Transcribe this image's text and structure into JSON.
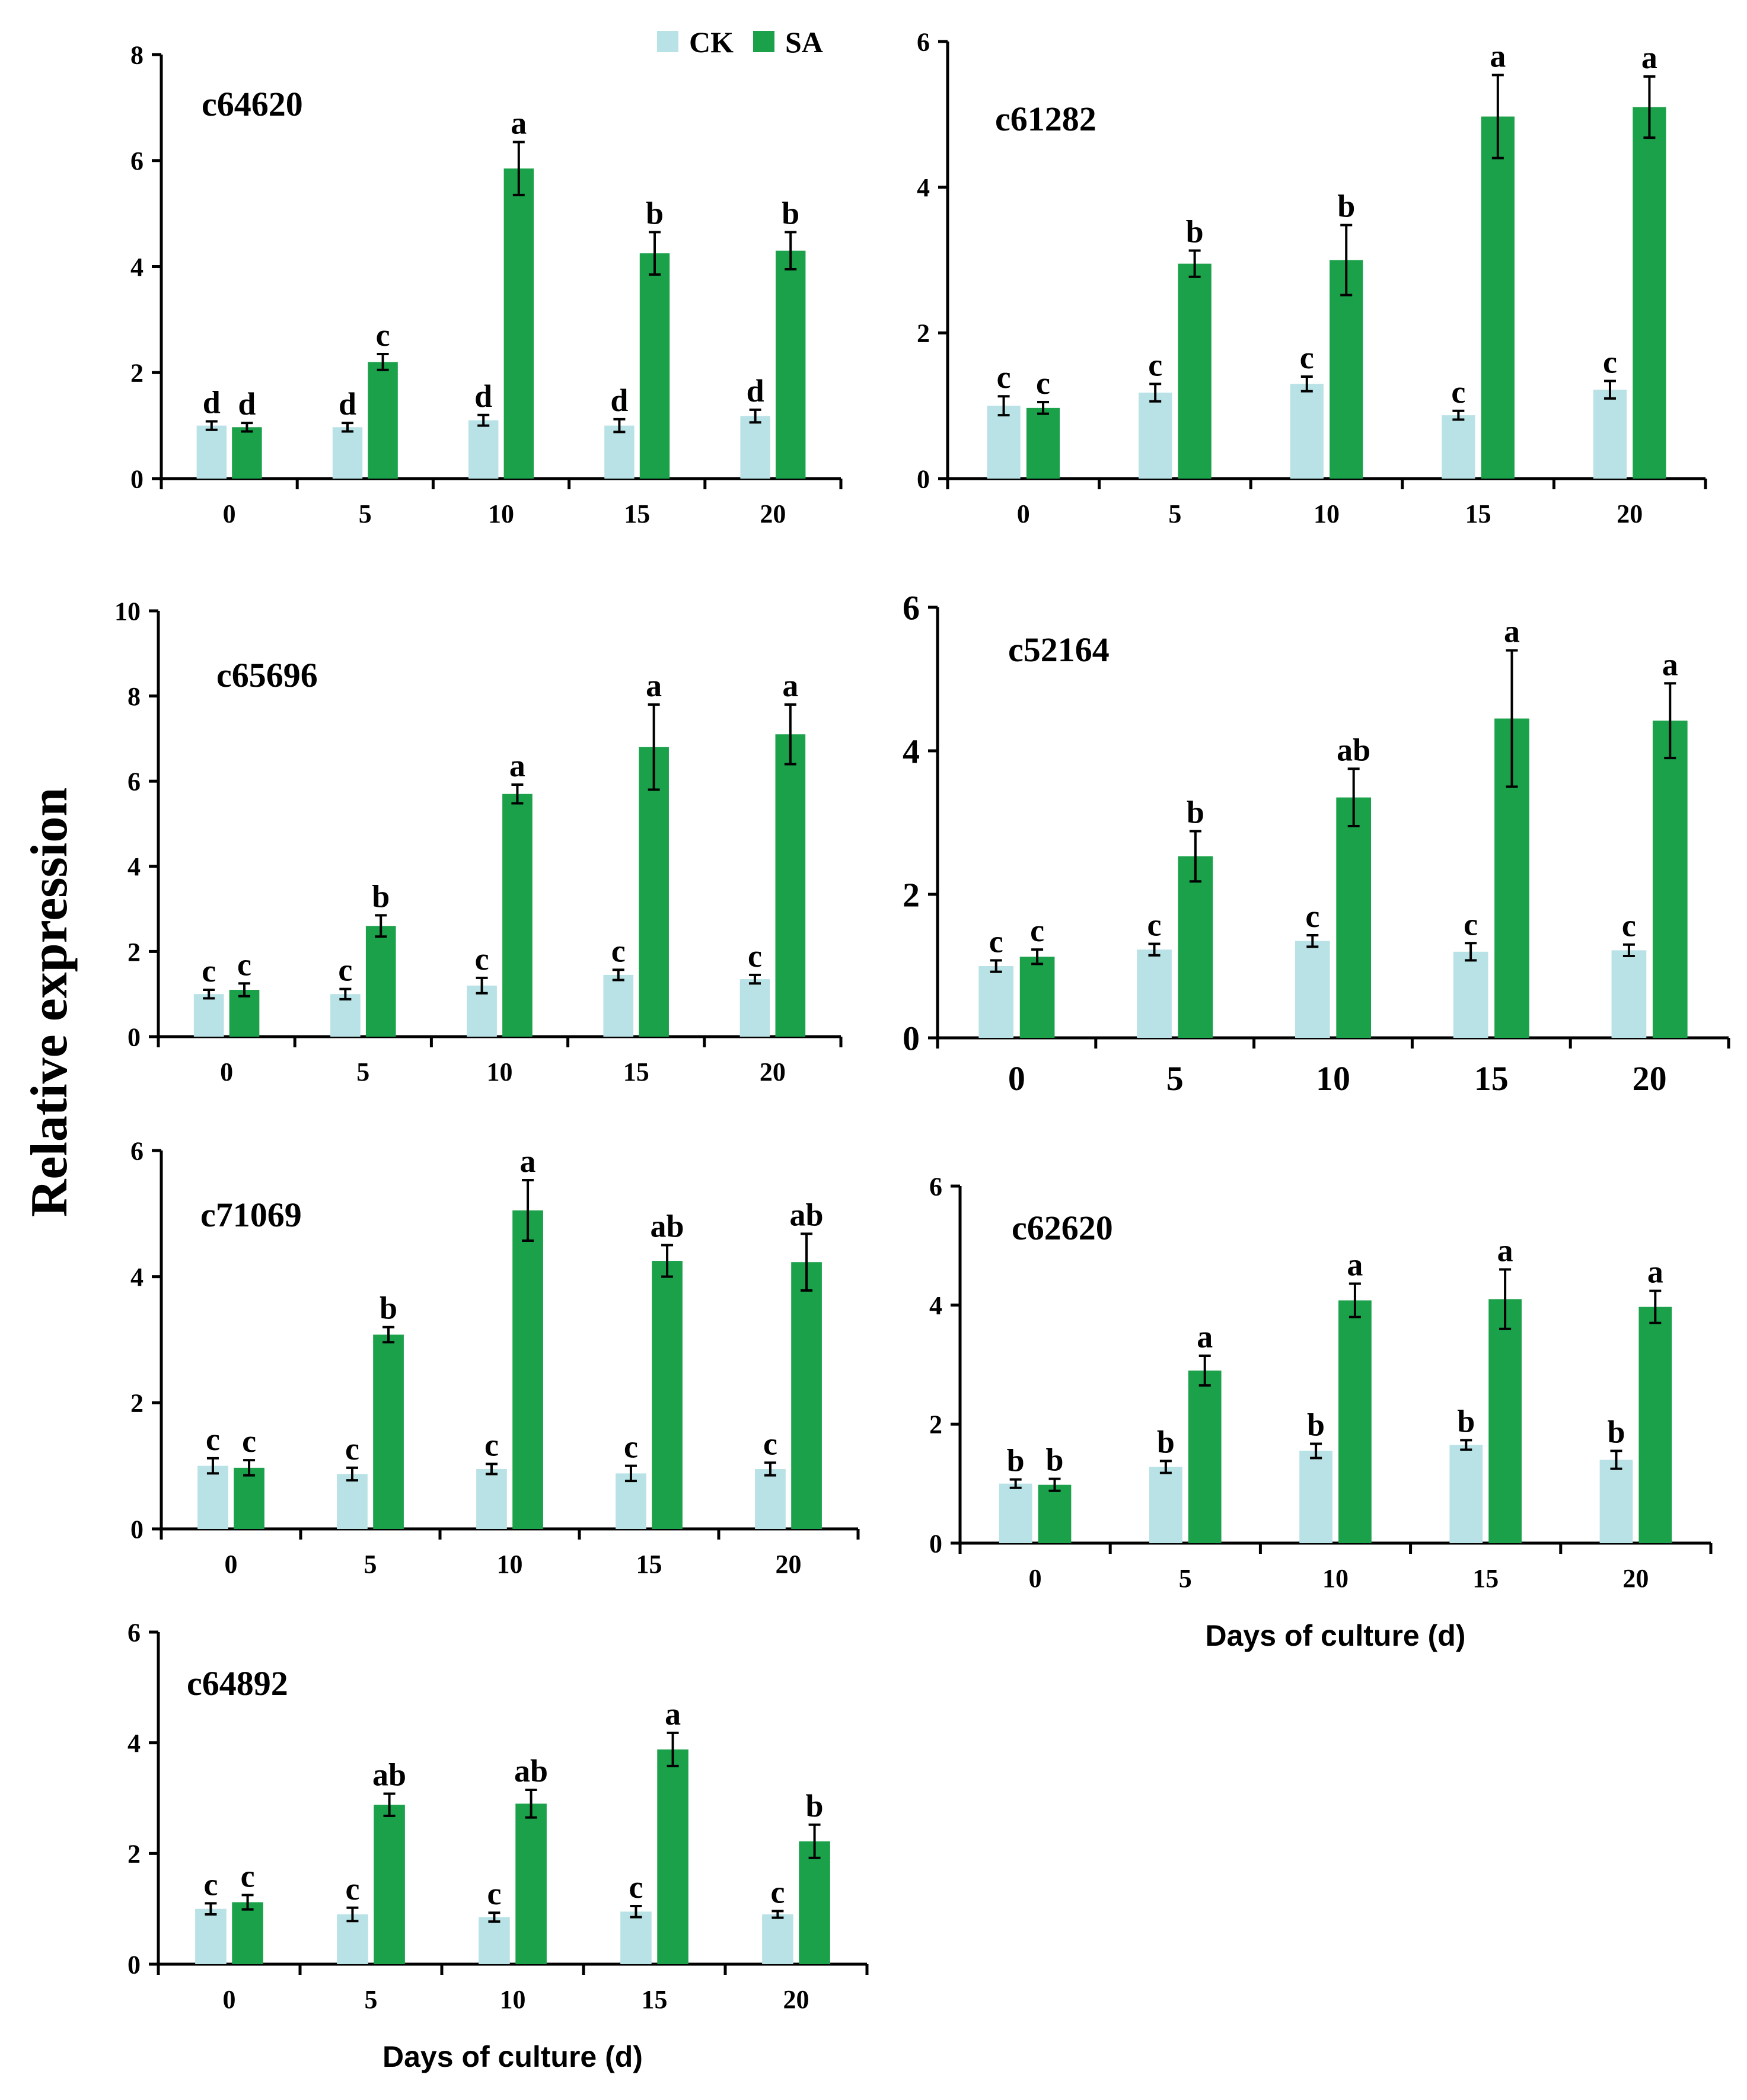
{
  "figure": {
    "ylabel": "Relative expression",
    "legend": [
      {
        "name": "CK",
        "color": "#b8e2e6"
      },
      {
        "name": "SA",
        "color": "#1aa14a"
      }
    ]
  },
  "chart_data": [
    {
      "type": "bar",
      "title": "c64620",
      "xlabel": "",
      "categories": [
        "0",
        "5",
        "10",
        "15",
        "20"
      ],
      "ylim": [
        0,
        8
      ],
      "yticks": [
        "0",
        "2",
        "4",
        "6",
        "8"
      ],
      "series": [
        {
          "name": "CK",
          "values": [
            1.0,
            0.97,
            1.1,
            1.0,
            1.18
          ],
          "errors": [
            0.08,
            0.08,
            0.1,
            0.12,
            0.12
          ],
          "letters": [
            "d",
            "d",
            "d",
            "d",
            "d"
          ]
        },
        {
          "name": "SA",
          "values": [
            0.97,
            2.2,
            5.85,
            4.25,
            4.3
          ],
          "errors": [
            0.08,
            0.15,
            0.5,
            0.4,
            0.35
          ],
          "letters": [
            "d",
            "c",
            "a",
            "b",
            "b"
          ]
        }
      ]
    },
    {
      "type": "bar",
      "title": "c61282",
      "xlabel": "",
      "categories": [
        "0",
        "5",
        "10",
        "15",
        "20"
      ],
      "ylim": [
        0,
        6
      ],
      "yticks": [
        "0",
        "2",
        "4",
        "6"
      ],
      "series": [
        {
          "name": "CK",
          "values": [
            1.0,
            1.18,
            1.3,
            0.87,
            1.22
          ],
          "errors": [
            0.13,
            0.12,
            0.1,
            0.06,
            0.12
          ],
          "letters": [
            "c",
            "c",
            "c",
            "c",
            "c"
          ]
        },
        {
          "name": "SA",
          "values": [
            0.97,
            2.95,
            3.0,
            4.97,
            5.1
          ],
          "errors": [
            0.08,
            0.18,
            0.48,
            0.57,
            0.42
          ],
          "letters": [
            "c",
            "b",
            "b",
            "a",
            "a"
          ]
        }
      ]
    },
    {
      "type": "bar",
      "title": "c65696",
      "xlabel": "",
      "categories": [
        "0",
        "5",
        "10",
        "15",
        "20"
      ],
      "ylim": [
        0,
        10
      ],
      "yticks": [
        "0",
        "2",
        "4",
        "6",
        "8",
        "10"
      ],
      "series": [
        {
          "name": "CK",
          "values": [
            1.0,
            1.0,
            1.2,
            1.45,
            1.35
          ],
          "errors": [
            0.1,
            0.12,
            0.18,
            0.12,
            0.1
          ],
          "letters": [
            "c",
            "c",
            "c",
            "c",
            "c"
          ]
        },
        {
          "name": "SA",
          "values": [
            1.1,
            2.6,
            5.7,
            6.8,
            7.1
          ],
          "errors": [
            0.15,
            0.25,
            0.22,
            1.0,
            0.7
          ],
          "letters": [
            "c",
            "b",
            "a",
            "a",
            "a"
          ]
        }
      ]
    },
    {
      "type": "bar",
      "title": "c52164",
      "xlabel": "",
      "categories": [
        "0",
        "5",
        "10",
        "15",
        "20"
      ],
      "ylim": [
        0,
        6
      ],
      "yticks": [
        "0",
        "2",
        "4",
        "6"
      ],
      "series": [
        {
          "name": "CK",
          "values": [
            1.0,
            1.23,
            1.35,
            1.2,
            1.22
          ],
          "errors": [
            0.08,
            0.08,
            0.08,
            0.12,
            0.08
          ],
          "letters": [
            "c",
            "c",
            "c",
            "c",
            "c"
          ]
        },
        {
          "name": "SA",
          "values": [
            1.13,
            2.53,
            3.35,
            4.45,
            4.42
          ],
          "errors": [
            0.1,
            0.35,
            0.4,
            0.95,
            0.52
          ],
          "letters": [
            "c",
            "b",
            "ab",
            "a",
            "a"
          ]
        }
      ]
    },
    {
      "type": "bar",
      "title": "c71069",
      "xlabel": "",
      "categories": [
        "0",
        "5",
        "10",
        "15",
        "20"
      ],
      "ylim": [
        0,
        6
      ],
      "yticks": [
        "0",
        "2",
        "4",
        "6"
      ],
      "series": [
        {
          "name": "CK",
          "values": [
            1.0,
            0.87,
            0.95,
            0.88,
            0.95
          ],
          "errors": [
            0.12,
            0.1,
            0.08,
            0.12,
            0.1
          ],
          "letters": [
            "c",
            "c",
            "c",
            "c",
            "c"
          ]
        },
        {
          "name": "SA",
          "values": [
            0.97,
            3.08,
            5.05,
            4.25,
            4.23
          ],
          "errors": [
            0.12,
            0.12,
            0.48,
            0.25,
            0.45
          ],
          "letters": [
            "c",
            "b",
            "a",
            "ab",
            "ab"
          ]
        }
      ]
    },
    {
      "type": "bar",
      "title": "c62620",
      "xlabel": "Days of culture (d)",
      "categories": [
        "0",
        "5",
        "10",
        "15",
        "20"
      ],
      "ylim": [
        0,
        6
      ],
      "yticks": [
        "0",
        "2",
        "4",
        "6"
      ],
      "series": [
        {
          "name": "CK",
          "values": [
            1.0,
            1.28,
            1.55,
            1.65,
            1.4
          ],
          "errors": [
            0.07,
            0.1,
            0.12,
            0.08,
            0.15
          ],
          "letters": [
            "b",
            "b",
            "b",
            "b",
            "b"
          ]
        },
        {
          "name": "SA",
          "values": [
            0.98,
            2.9,
            4.08,
            4.1,
            3.97
          ],
          "errors": [
            0.1,
            0.25,
            0.28,
            0.5,
            0.27
          ],
          "letters": [
            "b",
            "a",
            "a",
            "a",
            "a"
          ]
        }
      ]
    },
    {
      "type": "bar",
      "title": "c64892",
      "xlabel": "Days of culture (d)",
      "categories": [
        "0",
        "5",
        "10",
        "15",
        "20"
      ],
      "ylim": [
        0,
        6
      ],
      "yticks": [
        "0",
        "2",
        "4",
        "6"
      ],
      "series": [
        {
          "name": "CK",
          "values": [
            1.0,
            0.9,
            0.85,
            0.95,
            0.9
          ],
          "errors": [
            0.1,
            0.12,
            0.08,
            0.1,
            0.06
          ],
          "letters": [
            "c",
            "c",
            "c",
            "c",
            "c"
          ]
        },
        {
          "name": "SA",
          "values": [
            1.12,
            2.88,
            2.9,
            3.88,
            2.22
          ],
          "errors": [
            0.13,
            0.2,
            0.25,
            0.3,
            0.3
          ],
          "letters": [
            "c",
            "ab",
            "ab",
            "a",
            "b"
          ]
        }
      ]
    }
  ]
}
